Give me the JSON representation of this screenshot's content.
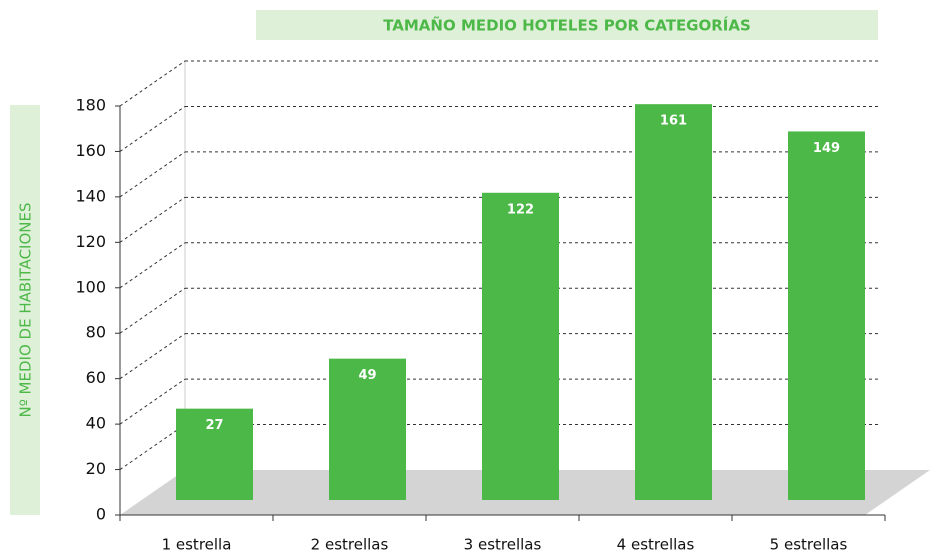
{
  "chart_data": {
    "type": "bar",
    "title": "TAMAÑO MEDIO HOTELES POR CATEGORÍAS",
    "y_label": "Nº MEDIO DE HABITACIONES",
    "categories": [
      "1 estrella",
      "2 estrellas",
      "3 estrellas",
      "4 estrellas",
      "5 estrellas"
    ],
    "values": [
      27,
      49,
      122,
      161,
      149
    ],
    "color": "#4cb848",
    "ylim": [
      0,
      180
    ],
    "yticks": [
      0,
      20,
      40,
      60,
      80,
      100,
      120,
      140,
      160,
      180
    ],
    "grid": true
  }
}
